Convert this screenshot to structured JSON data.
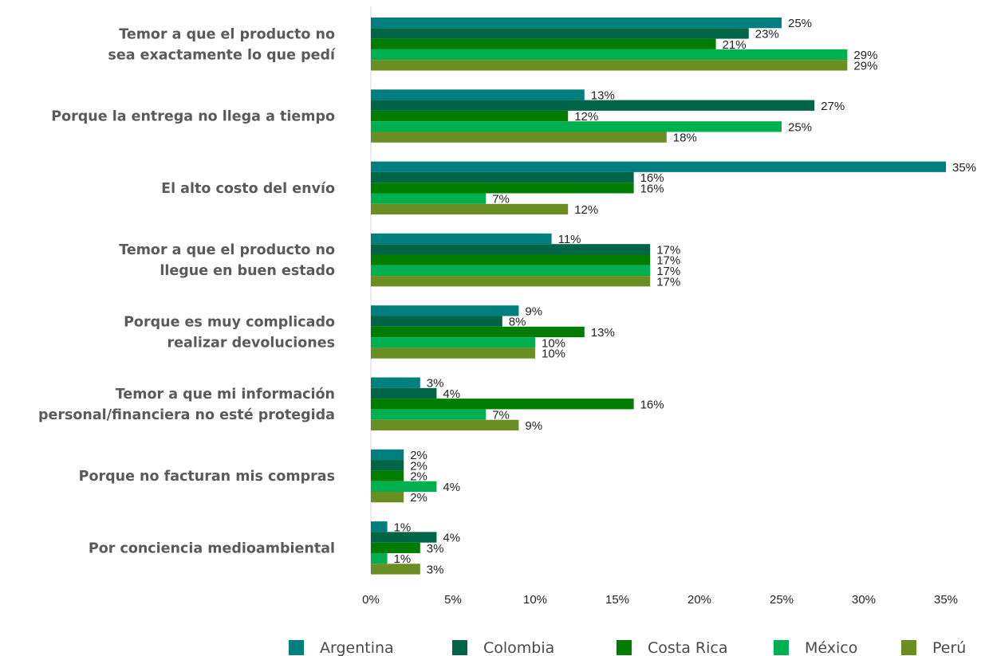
{
  "chart_data": {
    "type": "bar",
    "orientation": "horizontal",
    "categories": [
      [
        "Temor a que el producto no",
        "sea exactamente lo que pedí"
      ],
      [
        "Porque la entrega no llega a tiempo"
      ],
      [
        "El alto costo del envío"
      ],
      [
        "Temor a que el producto no",
        "llegue en buen estado"
      ],
      [
        "Porque es muy complicado",
        "realizar devoluciones"
      ],
      [
        "Temor a que mi información",
        "personal/financiera no esté protegida"
      ],
      [
        "Porque no facturan mis compras"
      ],
      [
        "Por conciencia medioambiental"
      ]
    ],
    "series": [
      {
        "name": "Argentina",
        "color": "#007f7f",
        "values": [
          25,
          13,
          35,
          11,
          9,
          3,
          2,
          1
        ]
      },
      {
        "name": "Colombia",
        "color": "#006446",
        "values": [
          23,
          27,
          16,
          17,
          8,
          4,
          2,
          4
        ]
      },
      {
        "name": "Costa Rica",
        "color": "#007d00",
        "values": [
          21,
          12,
          16,
          17,
          13,
          16,
          2,
          3
        ]
      },
      {
        "name": "México",
        "color": "#00b050",
        "values": [
          29,
          25,
          7,
          17,
          10,
          7,
          4,
          1
        ]
      },
      {
        "name": "Perú",
        "color": "#6b8e23",
        "values": [
          29,
          18,
          12,
          17,
          10,
          9,
          2,
          3
        ]
      }
    ],
    "value_suffix": "%",
    "xlim": [
      0,
      35
    ],
    "xticks": [
      "0%",
      "5%",
      "10%",
      "15%",
      "20%",
      "25%",
      "30%",
      "35%"
    ],
    "legend_position": "bottom",
    "grid": false
  }
}
